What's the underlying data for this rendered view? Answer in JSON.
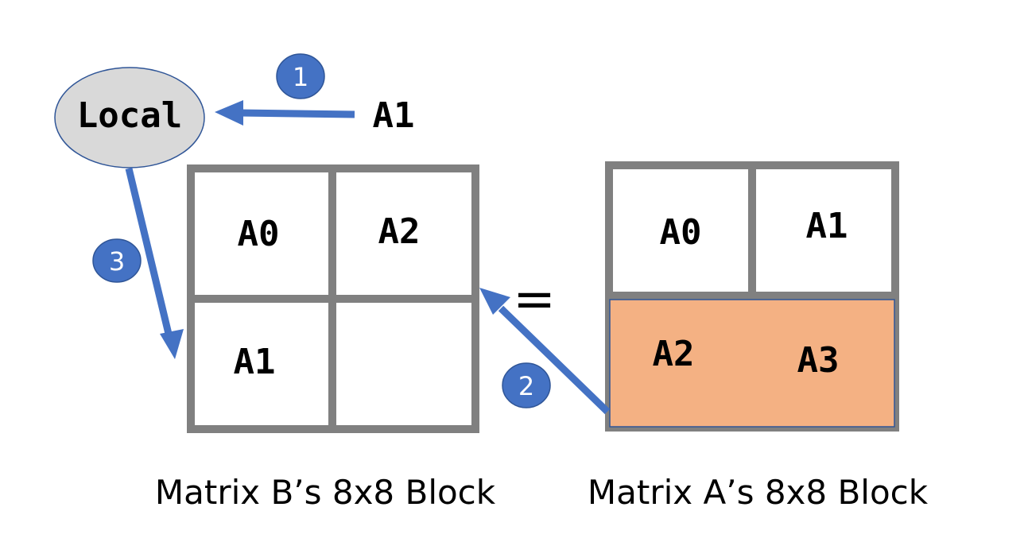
{
  "local_node": {
    "label": "Local"
  },
  "source_label": "A1",
  "matrix_b": {
    "cells": [
      "A0",
      "A2",
      "A1",
      ""
    ],
    "caption": "Matrix B’s 8x8 Block"
  },
  "equals_sign": "=",
  "matrix_a": {
    "cells": [
      "A0",
      "A1",
      "A2",
      "A3"
    ],
    "caption": "Matrix A’s 8x8 Block"
  },
  "steps": [
    "1",
    "2",
    "3"
  ],
  "colors": {
    "grid": "#808080",
    "arrow": "#4472c4",
    "step_fill": "#4472c4",
    "local_fill": "#d9d9d9",
    "highlight_fill": "#f4b183",
    "highlight_border": "#2f5597"
  }
}
